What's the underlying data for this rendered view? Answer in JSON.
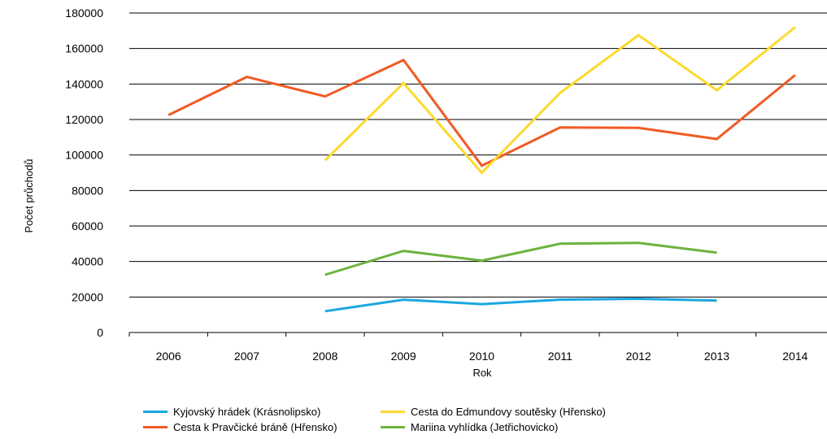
{
  "chart_data": {
    "type": "line",
    "title": "",
    "xlabel": "Rok",
    "ylabel": "Počet průchodů",
    "categories": [
      "2006",
      "2007",
      "2008",
      "2009",
      "2010",
      "2011",
      "2012",
      "2013",
      "2014"
    ],
    "ylim": [
      0,
      180000
    ],
    "yticks": [
      0,
      20000,
      40000,
      60000,
      80000,
      100000,
      120000,
      140000,
      160000,
      180000
    ],
    "grid": "horizontal",
    "legend_position": "bottom",
    "series": [
      {
        "name": "Kyjovský hrádek (Krásnolipsko)",
        "color": "#1aa7e0",
        "values": [
          null,
          null,
          12000,
          18500,
          16000,
          18500,
          19000,
          18000,
          null
        ]
      },
      {
        "name": "Cesta k Pravčické bráně (Hřensko)",
        "color": "#f15a24",
        "values": [
          122500,
          144000,
          133000,
          153500,
          94000,
          115500,
          115300,
          109000,
          145000
        ]
      },
      {
        "name": "Cesta do Edmundovy soutěsky (Hřensko)",
        "color": "#fdd92e",
        "values": [
          null,
          null,
          97000,
          140500,
          90000,
          135000,
          167500,
          136500,
          172000
        ]
      },
      {
        "name": "Mariina vyhlídka (Jetřichovicko)",
        "color": "#6cb33f",
        "values": [
          null,
          null,
          32500,
          46000,
          40500,
          50000,
          50500,
          45000,
          null
        ]
      }
    ]
  }
}
